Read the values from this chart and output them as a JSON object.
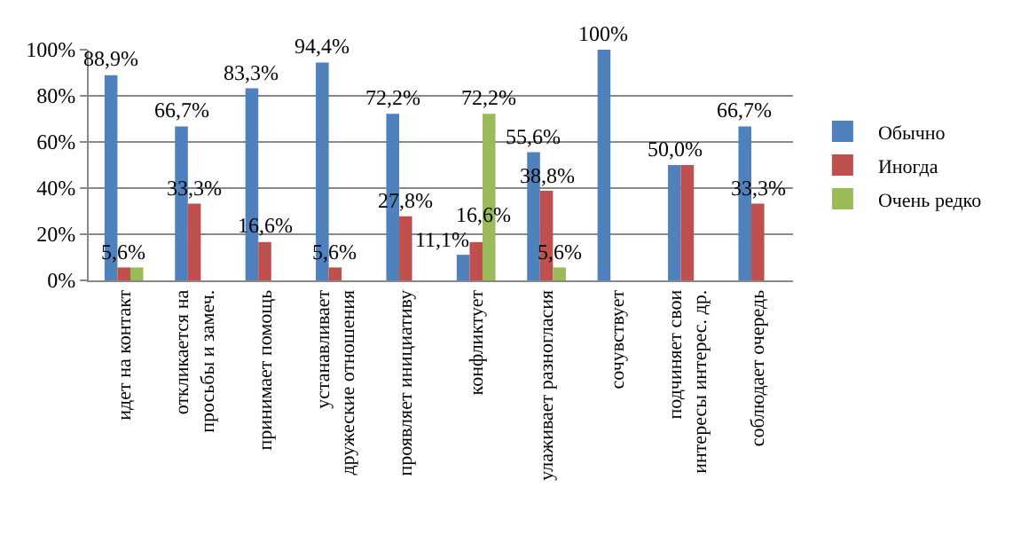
{
  "chart_data": {
    "type": "bar",
    "categories": [
      "идет на контакт",
      "откликается на просьбы и замеч.",
      "принимает помощь",
      "устанавливает дружеские отношения",
      "проявляет инициативу",
      "конфликтует",
      "улаживает разногласия",
      "сочувствует",
      "подчиняет свои интересы интерес. др.",
      "соблюдает очередь"
    ],
    "series": [
      {
        "name": "Обычно",
        "color": "#4f81bd",
        "values": [
          88.9,
          66.7,
          83.3,
          94.4,
          72.2,
          11.1,
          55.6,
          100,
          50.0,
          66.7
        ],
        "value_labels": [
          "88,9%",
          "66,7%",
          "83,3%",
          "94,4%",
          "72,2%",
          "11,1%",
          "55,6%",
          "100%",
          "50,0%",
          "66,7%"
        ]
      },
      {
        "name": "Иногда",
        "color": "#c0504d",
        "values": [
          5.6,
          33.3,
          16.6,
          5.6,
          27.8,
          16.6,
          38.8,
          null,
          50,
          33.3
        ],
        "value_labels": [
          "5,6%",
          "33,3%",
          "16,6%",
          "5,6%",
          "27,8%",
          "16,6%",
          "38,8%",
          null,
          null,
          "33,3%"
        ]
      },
      {
        "name": "Очень редко",
        "color": "#9bbb59",
        "values": [
          5.6,
          null,
          null,
          null,
          null,
          72.2,
          5.6,
          null,
          null,
          null
        ],
        "value_labels": [
          null,
          null,
          null,
          null,
          null,
          "72,2%",
          "5,6%",
          null,
          null,
          null
        ]
      }
    ],
    "ylim": [
      0,
      100
    ],
    "yticks": [
      {
        "value": 0,
        "label": "0%"
      },
      {
        "value": 20,
        "label": "20%"
      },
      {
        "value": 40,
        "label": "40%"
      },
      {
        "value": 60,
        "label": "60%"
      },
      {
        "value": 80,
        "label": "80%"
      },
      {
        "value": 100,
        "label": "100%"
      }
    ],
    "grid": "y",
    "legend": "right"
  }
}
